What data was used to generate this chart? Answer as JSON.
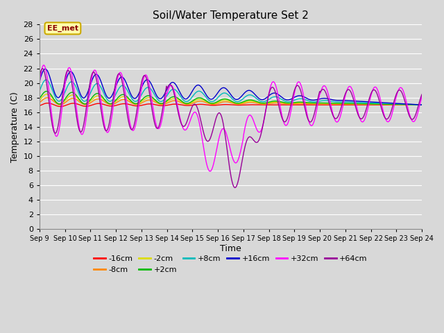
{
  "title": "Soil/Water Temperature Set 2",
  "xlabel": "Time",
  "ylabel": "Temperature (C)",
  "ylim": [
    0,
    28
  ],
  "yticks": [
    0,
    2,
    4,
    6,
    8,
    10,
    12,
    14,
    16,
    18,
    20,
    22,
    24,
    26,
    28
  ],
  "x_start": 9,
  "x_end": 24,
  "x_labels": [
    "Sep 9",
    "Sep 10",
    "Sep 11",
    "Sep 12",
    "Sep 13",
    "Sep 14",
    "Sep 15",
    "Sep 16",
    "Sep 17",
    "Sep 18",
    "Sep 19",
    "Sep 20",
    "Sep 21",
    "Sep 22",
    "Sep 23",
    "Sep 24"
  ],
  "x_ticks": [
    9,
    10,
    11,
    12,
    13,
    14,
    15,
    16,
    17,
    18,
    19,
    20,
    21,
    22,
    23,
    24
  ],
  "bg_color": "#d8d8d8",
  "grid_color": "#ffffff",
  "series": [
    {
      "label": "-16cm",
      "color": "#ff0000"
    },
    {
      "label": "-8cm",
      "color": "#ff8800"
    },
    {
      "label": "-2cm",
      "color": "#dddd00"
    },
    {
      "label": "+2cm",
      "color": "#00bb00"
    },
    {
      "label": "+8cm",
      "color": "#00bbbb"
    },
    {
      "label": "+16cm",
      "color": "#0000cc"
    },
    {
      "label": "+32cm",
      "color": "#ff00ff"
    },
    {
      "label": "+64cm",
      "color": "#990099"
    }
  ],
  "annotation_text": "EE_met",
  "annotation_color": "#8b0000",
  "annotation_bg": "#ffffaa",
  "annotation_border": "#ccaa00"
}
